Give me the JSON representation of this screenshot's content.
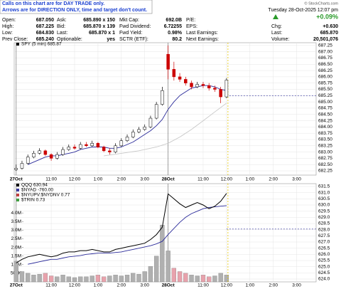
{
  "note": [
    "Calls on this chart are for DAY TRADE only.",
    "Arrows are for DIRECTION ONLY, time and target don't count."
  ],
  "header": {
    "credit": "© StockCharts.com",
    "date": "Tuesday 28-Oct-2025 12:07 pm",
    "change_pct": "+0.09%",
    "rows": [
      [
        {
          "label": "Open:",
          "value": "687.050"
        },
        {
          "label": "Ask:",
          "value": "685.890 x 150"
        },
        {
          "label": "Mkt Cap:",
          "value": "692.0B"
        },
        {
          "label": "P/E:"
        }
      ],
      [
        {
          "label": "High:",
          "value": "687.225"
        },
        {
          "label": "Bid:",
          "value": "685.870 x 139"
        },
        {
          "label": "Fwd Dividend:",
          "value": "6.72255"
        },
        {
          "label": "EPS:"
        },
        {
          "label": "Chg:",
          "value": "+0.630"
        }
      ],
      [
        {
          "label": "Low:",
          "value": "684.830"
        },
        {
          "label": "Last:",
          "value": "685.870 x 1"
        },
        {
          "label": "Fwd Yield:",
          "value": "0.98%"
        },
        {
          "label": "Last Earnings:"
        },
        {
          "label": "Last:",
          "value": "685.870"
        }
      ],
      [
        {
          "label": "Prev Close:",
          "value": "685.240"
        },
        {
          "label": "Optionable:",
          "value": "yes"
        },
        {
          "label": "SCTR (ETF):",
          "value": "80.2"
        },
        {
          "label": "Next Earnings:"
        },
        {
          "label": "Volume:",
          "value": "20,501,076"
        }
      ]
    ]
  },
  "chart_data": [
    {
      "type": "candlestick",
      "legend": [
        "SPY (5 min) 685.87"
      ],
      "grid": true,
      "x": [
        0,
        3,
        6,
        9,
        12,
        15,
        18,
        21,
        24,
        27,
        30,
        33,
        36,
        39,
        42,
        45,
        48,
        51,
        54,
        57,
        60,
        63,
        66,
        69,
        72,
        75,
        78,
        81,
        84,
        87,
        90,
        93,
        96,
        99,
        102,
        105,
        108
      ],
      "open": [
        682.3,
        682.35,
        682.55,
        682.8,
        682.95,
        683.05,
        682.9,
        682.75,
        682.9,
        683.1,
        683.2,
        683.15,
        683.3,
        683.25,
        683.35,
        683.2,
        683.05,
        683.0,
        683.25,
        683.45,
        683.6,
        683.8,
        683.9,
        684.0,
        684.35,
        684.9,
        686.9,
        686.3,
        686.0,
        685.9,
        685.75,
        685.6,
        685.7,
        685.65,
        685.55,
        685.5,
        685.2
      ],
      "high": [
        682.5,
        682.65,
        682.9,
        683.05,
        683.15,
        683.1,
        682.95,
        683.0,
        683.2,
        683.3,
        683.3,
        683.4,
        683.4,
        683.45,
        683.4,
        683.25,
        683.15,
        683.35,
        683.55,
        683.7,
        683.9,
        684.0,
        684.1,
        684.45,
        685.0,
        685.6,
        687.25,
        686.6,
        686.15,
        686.0,
        685.85,
        685.8,
        685.8,
        685.75,
        685.65,
        685.6,
        685.95
      ],
      "low": [
        682.25,
        682.3,
        682.5,
        682.75,
        682.9,
        682.85,
        682.65,
        682.7,
        682.85,
        683.05,
        683.1,
        683.1,
        683.2,
        683.2,
        683.15,
        683.0,
        682.9,
        682.95,
        683.2,
        683.4,
        683.55,
        683.75,
        683.85,
        683.95,
        684.3,
        684.85,
        685.9,
        685.85,
        685.8,
        685.65,
        685.5,
        685.55,
        685.55,
        685.45,
        685.4,
        684.95,
        685.15
      ],
      "close": [
        682.35,
        682.55,
        682.8,
        682.95,
        683.05,
        682.9,
        682.75,
        682.9,
        683.1,
        683.2,
        683.15,
        683.3,
        683.25,
        683.35,
        683.2,
        683.05,
        683.0,
        683.25,
        683.45,
        683.6,
        683.8,
        683.9,
        684.0,
        684.35,
        684.9,
        685.45,
        686.3,
        686.0,
        685.9,
        685.75,
        685.6,
        685.7,
        685.65,
        685.55,
        685.5,
        685.2,
        685.87
      ],
      "series": [
        {
          "color": "#2b2b9a",
          "x": [
            0,
            3,
            6,
            9,
            12,
            15,
            18,
            21,
            24,
            27,
            30,
            33,
            36,
            39,
            42,
            45,
            48,
            51,
            54,
            57,
            60,
            63,
            66,
            69,
            72,
            75,
            78,
            81,
            84,
            87,
            90,
            93,
            96,
            99,
            102,
            105,
            108
          ],
          "values": [
            null,
            null,
            682.5,
            682.6,
            682.7,
            682.8,
            682.85,
            682.85,
            682.9,
            682.95,
            683.0,
            683.1,
            683.15,
            683.2,
            683.2,
            683.2,
            683.15,
            683.15,
            683.2,
            683.3,
            683.4,
            683.55,
            683.7,
            683.85,
            684.05,
            684.3,
            684.7,
            685.0,
            685.25,
            685.4,
            685.55,
            685.6,
            685.65,
            685.65,
            685.6,
            685.5,
            685.45
          ]
        },
        {
          "color": "#c8c8c8",
          "x": [
            45,
            54,
            63,
            72,
            78,
            84,
            90,
            96,
            102,
            108
          ],
          "values": [
            682.85,
            682.95,
            683.05,
            683.2,
            683.35,
            683.6,
            683.9,
            684.25,
            684.6,
            684.95
          ]
        }
      ],
      "level": 685.25,
      "xlim": [
        -1,
        154
      ],
      "ylim": [
        682.08,
        687.36
      ],
      "xticks": [
        {
          "value": 0,
          "label": "27Oct"
        },
        {
          "value": 18,
          "label": "11:00"
        },
        {
          "value": 30,
          "label": "12:00"
        },
        {
          "value": 42,
          "label": "1:00"
        },
        {
          "value": 54,
          "label": "2:00"
        },
        {
          "value": 66,
          "label": "3:00"
        },
        {
          "value": 78,
          "label": "28Oct"
        },
        {
          "value": 96,
          "label": "11:00"
        },
        {
          "value": 108,
          "label": "12:00"
        },
        {
          "value": 120,
          "label": "1:00"
        },
        {
          "value": 132,
          "label": "2:00"
        },
        {
          "value": 144,
          "label": "3:00"
        }
      ],
      "yticks": [
        687.25,
        {
          "value": 687,
          "label": "687.00"
        },
        686.75,
        {
          "value": 686.5,
          "label": "686.50"
        },
        686.25,
        {
          "value": 686,
          "label": "686.00"
        },
        685.75,
        {
          "value": 685.5,
          "label": "685.50"
        },
        685.25,
        {
          "value": 685,
          "label": "685.00"
        },
        684.75,
        {
          "value": 684.5,
          "label": "684.50"
        },
        684.25,
        {
          "value": 684,
          "label": "684.00"
        },
        683.75,
        {
          "value": 683.5,
          "label": "683.50"
        },
        683.25,
        {
          "value": 683,
          "label": "683.00"
        },
        682.75,
        {
          "value": 682.5,
          "label": "682.50"
        },
        682.25
      ]
    },
    {
      "type": "line",
      "legend": [
        "QQQ 630.94",
        "$NYAD -760.00",
        "$NYUPV:$NYDNV 0.77",
        "$TRIN 0.73"
      ],
      "legend_colors": [
        "#000000",
        "#3c3ca0",
        "#c04040",
        "#40a040"
      ],
      "grid": true,
      "series": [
        {
          "color": "#000000",
          "x": [
            0,
            3,
            6,
            9,
            12,
            15,
            18,
            21,
            24,
            27,
            30,
            33,
            36,
            39,
            42,
            45,
            48,
            51,
            54,
            57,
            60,
            63,
            66,
            69,
            72,
            75,
            78,
            81,
            84,
            87,
            90,
            93,
            96,
            99,
            102,
            105,
            108
          ],
          "values": [
            625.3,
            625.6,
            625.8,
            625.9,
            626.0,
            625.9,
            625.8,
            625.9,
            626.1,
            626.2,
            626.2,
            626.3,
            626.3,
            626.4,
            626.3,
            626.2,
            626.2,
            626.4,
            626.5,
            626.6,
            626.7,
            626.8,
            626.9,
            627.2,
            627.6,
            628.2,
            630.9,
            630.5,
            630.1,
            629.8,
            630.0,
            630.2,
            630.0,
            629.7,
            629.9,
            630.3,
            630.94
          ]
        },
        {
          "color": "#2b2b9a",
          "x": [
            0,
            3,
            6,
            9,
            12,
            15,
            18,
            21,
            24,
            27,
            30,
            33,
            36,
            39,
            42,
            45,
            48,
            51,
            54,
            57,
            60,
            63,
            66,
            69,
            72,
            75,
            78,
            81,
            84,
            87,
            90,
            93,
            96,
            99,
            102,
            105,
            108
          ],
          "values": [
            null,
            null,
            625.2,
            625.3,
            625.4,
            625.5,
            625.6,
            625.6,
            625.7,
            625.8,
            625.85,
            625.9,
            626.0,
            626.05,
            626.1,
            626.1,
            626.1,
            626.15,
            626.2,
            626.3,
            626.4,
            626.5,
            626.6,
            626.7,
            626.85,
            627.05,
            627.6,
            628.1,
            628.6,
            629.0,
            629.3,
            629.5,
            629.7,
            629.8,
            629.85,
            629.9,
            629.95
          ]
        }
      ],
      "volume": {
        "up_color": "#b0b0b0",
        "down_color": "#e8a2ac",
        "values": [
          1200000,
          600000,
          500000,
          400000,
          450000,
          500000,
          350000,
          300000,
          400000,
          300000,
          250000,
          300000,
          300000,
          350000,
          400000,
          300000,
          350000,
          400000,
          350000,
          400000,
          500000,
          450000,
          600000,
          900000,
          1500000,
          3300000,
          1800000,
          800000,
          600000,
          500000,
          400000,
          350000,
          400000,
          300000,
          350000,
          500000,
          400000
        ],
        "ylim": [
          0,
          5700000
        ],
        "yticks": [
          {
            "value": 4000000,
            "label": "4.0M"
          },
          {
            "value": 3500000,
            "label": "3.5M"
          },
          {
            "value": 3000000,
            "label": "3.0M"
          },
          {
            "value": 2500000,
            "label": "2.5M"
          },
          {
            "value": 2000000,
            "label": "2.0M"
          },
          {
            "value": 1500000,
            "label": "1.5M"
          },
          {
            "value": 1000000,
            "label": "1.0M"
          },
          {
            "value": 500000,
            "label": "500K"
          }
        ]
      },
      "level": 628.05,
      "xlim": [
        -1,
        154
      ],
      "ylim": [
        623.77,
        631.73
      ],
      "xticks": [
        {
          "value": 0,
          "label": "27Oct"
        },
        {
          "value": 18,
          "label": "11:00"
        },
        {
          "value": 30,
          "label": "12:00"
        },
        {
          "value": 42,
          "label": "1:00"
        },
        {
          "value": 54,
          "label": "2:00"
        },
        {
          "value": 66,
          "label": "3:00"
        },
        {
          "value": 78,
          "label": "28Oct"
        },
        {
          "value": 96,
          "label": "11:00"
        },
        {
          "value": 108,
          "label": "12:00"
        },
        {
          "value": 120,
          "label": "1:00"
        },
        {
          "value": 132,
          "label": "2:00"
        },
        {
          "value": 144,
          "label": "3:00"
        }
      ],
      "yticks": [
        631.5,
        {
          "value": 631,
          "label": "631.0"
        },
        630.5,
        {
          "value": 630,
          "label": "630.0"
        },
        629.5,
        {
          "value": 629,
          "label": "629.0"
        },
        628.5,
        {
          "value": 628,
          "label": "628.0"
        },
        627.5,
        {
          "value": 627,
          "label": "627.0"
        },
        626.5,
        {
          "value": 626,
          "label": "626.0"
        },
        625.5,
        {
          "value": 625,
          "label": "625.0"
        },
        624.5,
        {
          "value": 624,
          "label": "624.0"
        }
      ]
    }
  ]
}
